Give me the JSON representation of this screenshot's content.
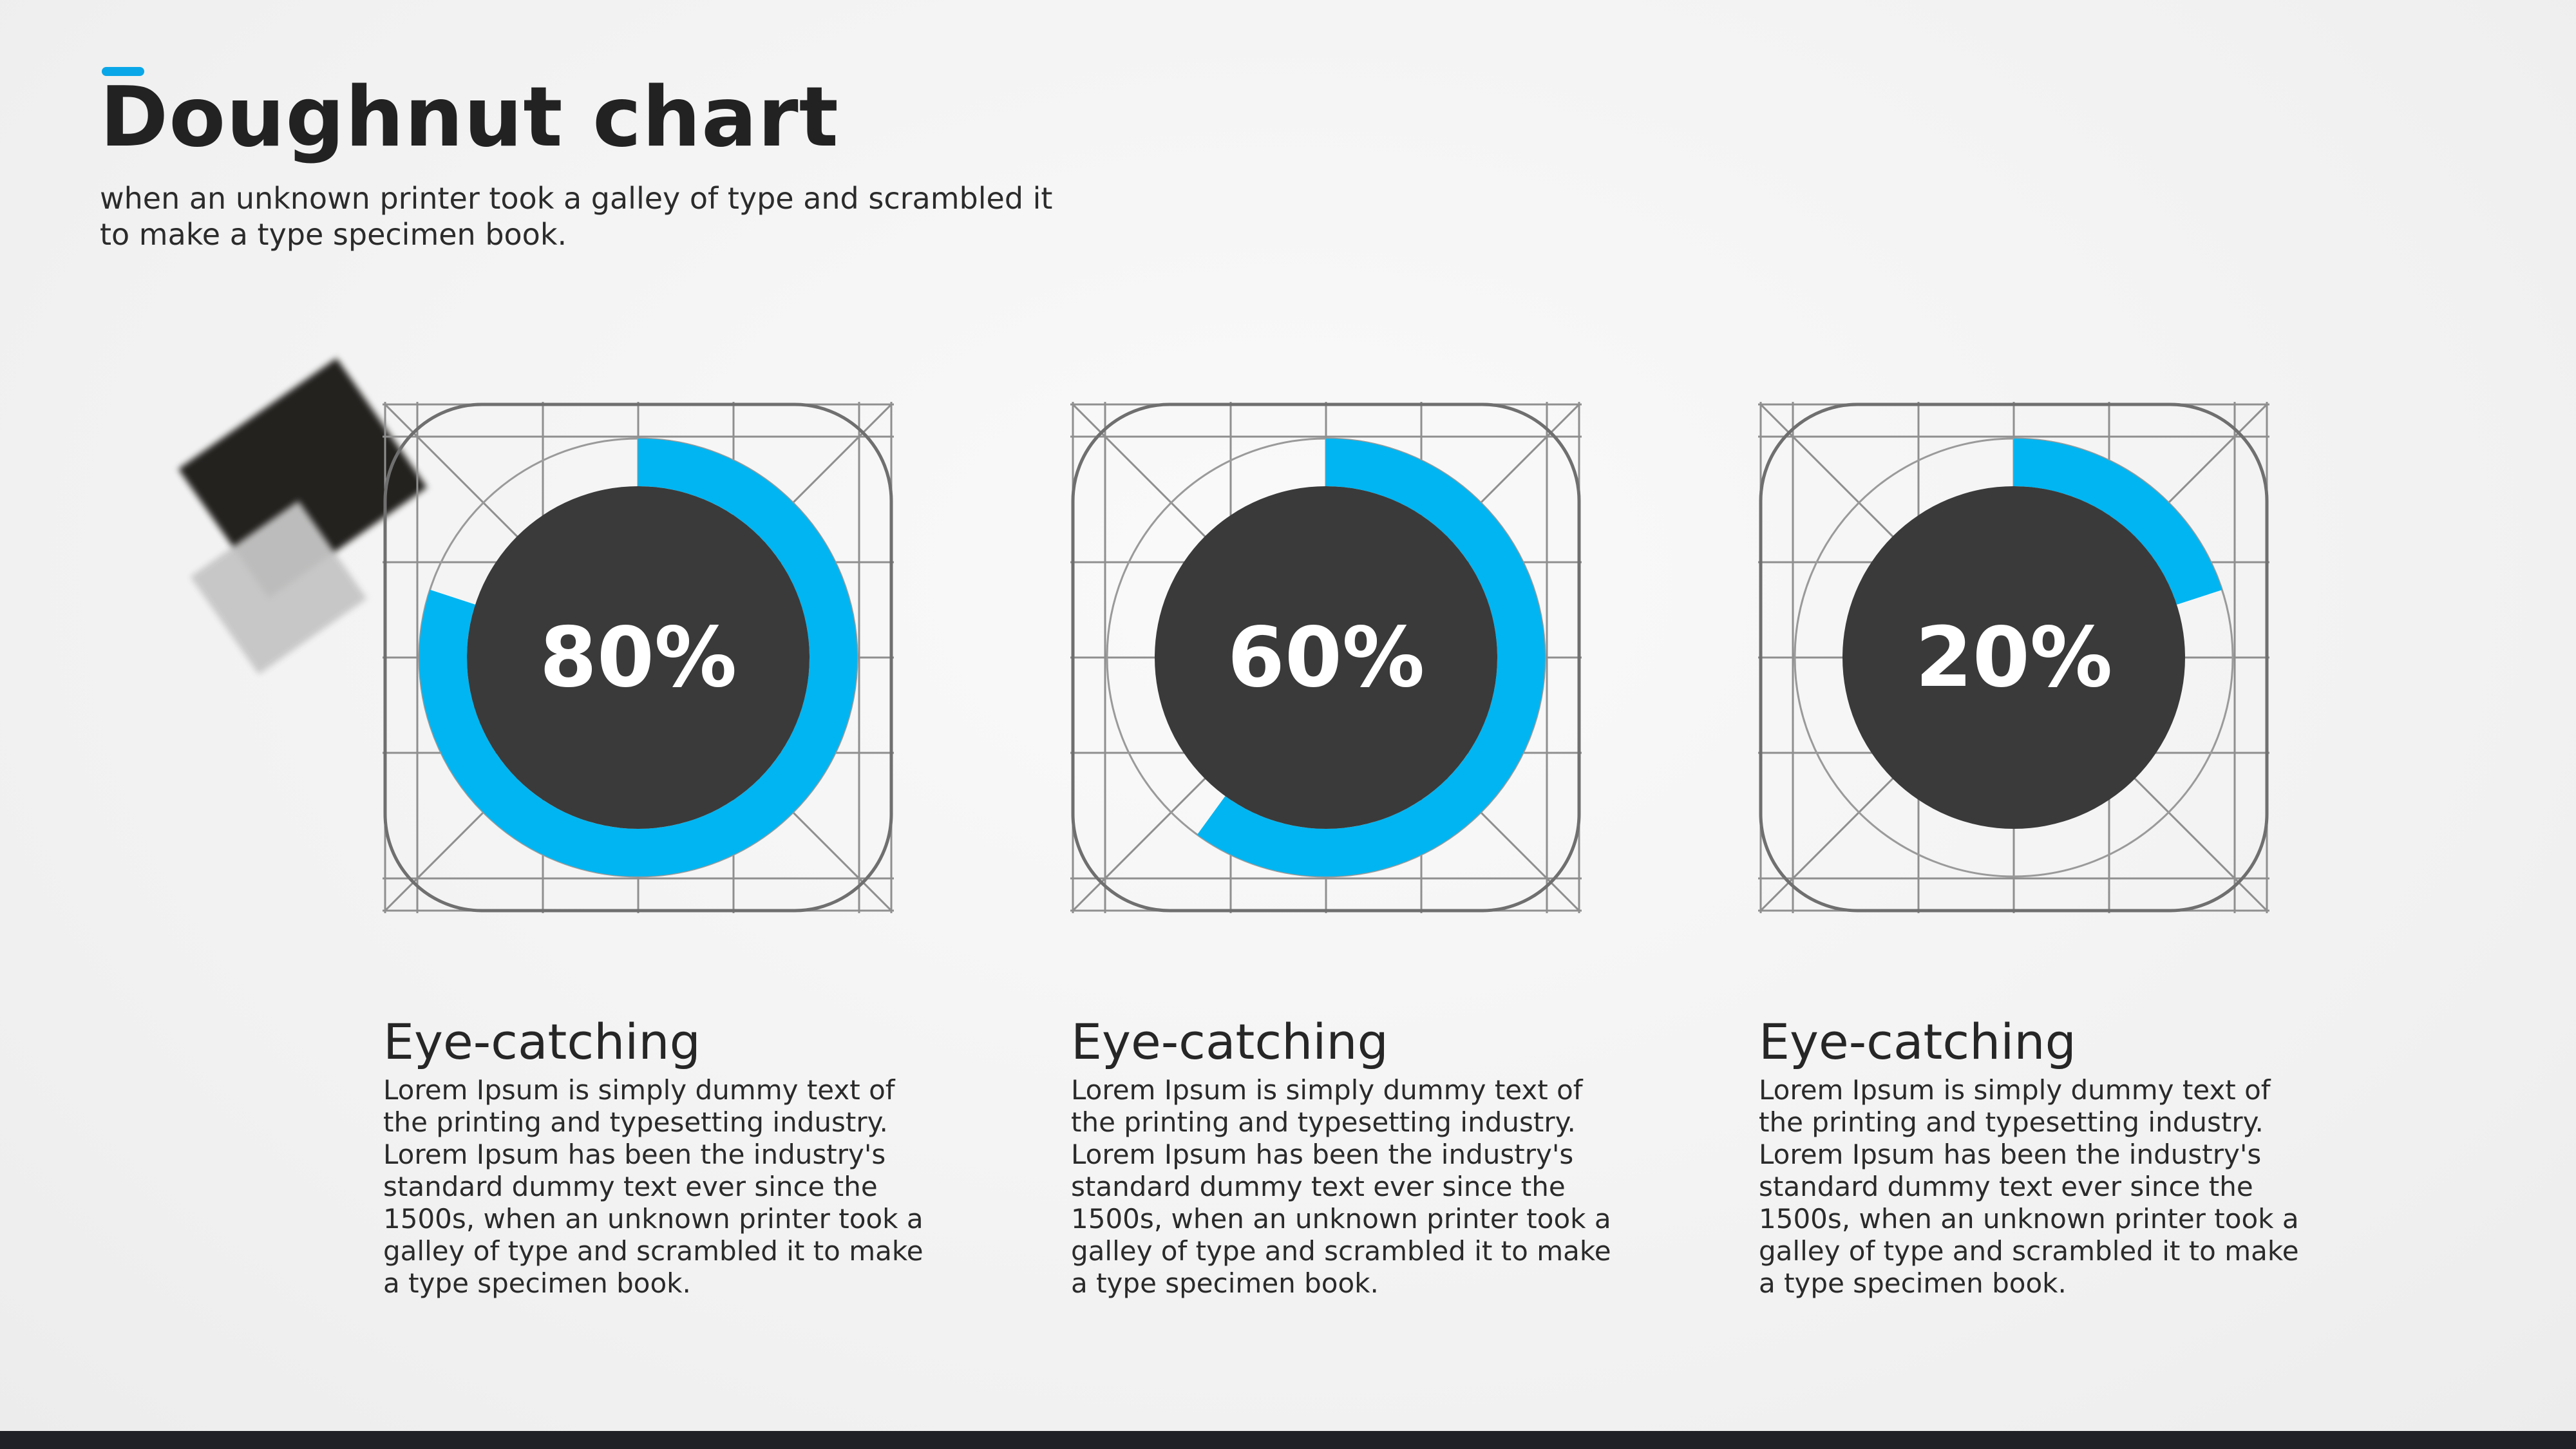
{
  "header": {
    "title": "Doughnut chart",
    "subtitle": "when an unknown printer took a galley of type and scrambled it to make a type specimen book."
  },
  "colors": {
    "accent": "#00b5f1",
    "hole": "#3a3a3a",
    "background": "#f3f3f3",
    "footer": "#1f2126"
  },
  "chart_data": [
    {
      "type": "pie",
      "variant": "doughnut",
      "value_percent": 80,
      "label": "80%",
      "color": "#00b5f1"
    },
    {
      "type": "pie",
      "variant": "doughnut",
      "value_percent": 60,
      "label": "60%",
      "color": "#00b5f1"
    },
    {
      "type": "pie",
      "variant": "doughnut",
      "value_percent": 20,
      "label": "20%",
      "color": "#00b5f1"
    }
  ],
  "cards": [
    {
      "heading": "Eye-catching",
      "body": "Lorem Ipsum is simply dummy text of the printing and typesetting industry. Lorem Ipsum has been the industry's standard dummy text ever since the 1500s, when an unknown printer took a galley of type and scrambled it to make a type specimen book."
    },
    {
      "heading": "Eye-catching",
      "body": "Lorem Ipsum is simply dummy text of the printing and typesetting industry. Lorem Ipsum has been the industry's standard dummy text ever since the 1500s, when an unknown printer took a galley of type and scrambled it to make a type specimen book."
    },
    {
      "heading": "Eye-catching",
      "body": "Lorem Ipsum is simply dummy text of the printing and typesetting industry. Lorem Ipsum has been the industry's standard dummy text ever since the 1500s, when an unknown printer took a galley of type and scrambled it to make a type specimen book."
    }
  ]
}
